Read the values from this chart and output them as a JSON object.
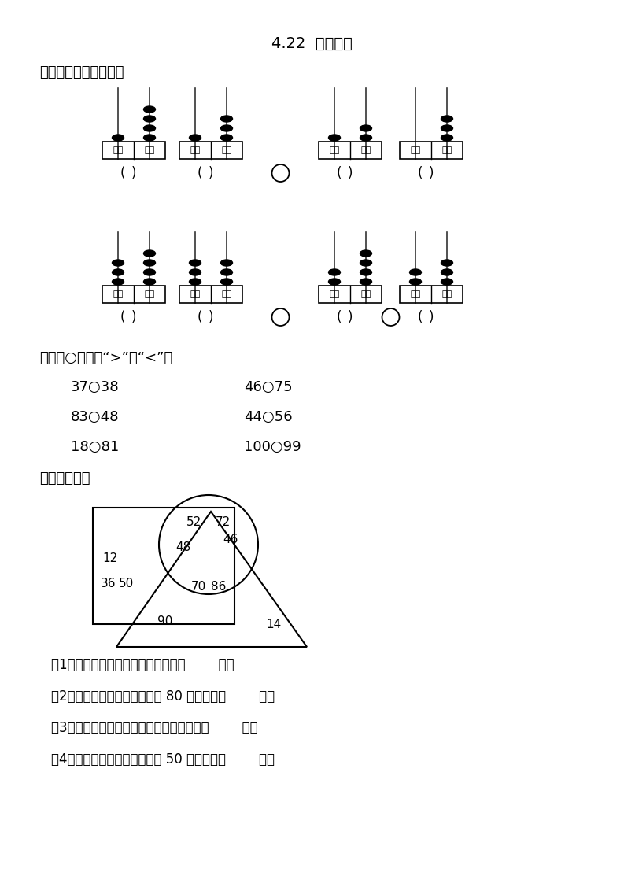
{
  "title": "4.22  比较大小",
  "section1": "一、写一写，比一比。",
  "section2": "二、在○里填上“>”或“<”。",
  "section3": "三、我会填。",
  "compare_items": [
    [
      "37○38",
      "46○75"
    ],
    [
      "83○48",
      "44○56"
    ],
    [
      "18○81",
      "100○99"
    ]
  ],
  "questions": [
    "（1）正方形里最大的数是我，我是（        ）。",
    "（2）我在圆形和三角形里，比 80 大，我是（        ）。",
    "（3）我在正方形、圆形和三角形里，我是（        ）。",
    "（4）我在正方形和圆形里，比 50 小，我是（        ）。"
  ],
  "bg_color": "#ffffff"
}
